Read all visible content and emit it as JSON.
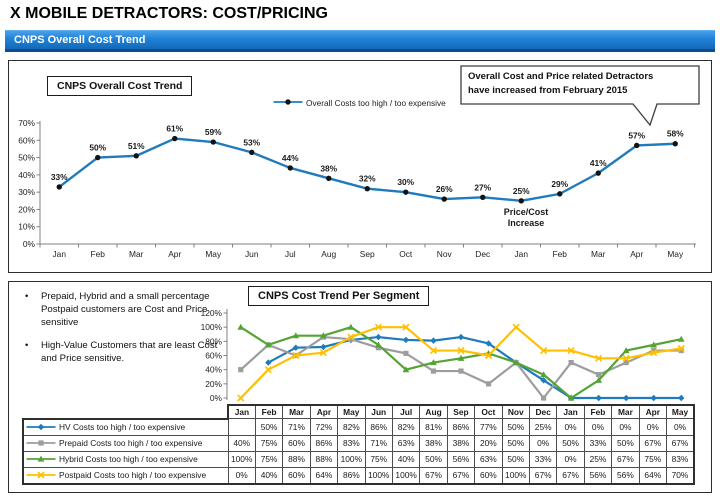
{
  "page_title": "X MOBILE DETRACTORS: COST/PRICING",
  "banner": {
    "label": "CNPS Overall Cost Trend"
  },
  "panel1": {
    "chart_title": "CNPS Overall Cost Trend",
    "legend_label": "Overall Costs too high / too expensive",
    "callout_text": "Overall Cost and Price related Detractors\nhave increased from February 2015",
    "annotation_text": "Price/Cost\nIncrease"
  },
  "panel2": {
    "chart_title": "CNPS Cost Trend Per Segment",
    "bullets": [
      "Prepaid, Hybrid and a small percentage Postpaid customers are Cost and Price sensitive",
      "High-Value Customers that are least Cost and Price sensitive."
    ]
  },
  "colors": {
    "banner_blue": "#1E82D8",
    "line_blue": "#1F7BBD",
    "line_gray": "#9D9D9D",
    "line_green": "#55A336",
    "line_yellow": "#FFC000",
    "marker_black": "#131313"
  },
  "chart_data": [
    {
      "type": "line",
      "title": "CNPS Overall Cost Trend",
      "categories": [
        "Jan",
        "Feb",
        "Mar",
        "Apr",
        "May",
        "Jun",
        "Jul",
        "Aug",
        "Sep",
        "Oct",
        "Nov",
        "Dec",
        "Jan",
        "Feb",
        "Mar",
        "Apr",
        "May"
      ],
      "series": [
        {
          "name": "Overall Costs too high / too expensive",
          "color": "#1F7BBD",
          "marker": "circle",
          "values": [
            33,
            50,
            51,
            61,
            59,
            53,
            44,
            38,
            32,
            30,
            26,
            27,
            25,
            29,
            41,
            57,
            58
          ]
        }
      ],
      "ylim": [
        0,
        70
      ],
      "yticks": [
        0,
        10,
        20,
        30,
        40,
        50,
        60,
        70
      ],
      "data_labels": true,
      "grid": false,
      "legend_position": "top",
      "annotations": [
        "Price/Cost Increase",
        "Overall Cost and Price related Detractors have increased from February 2015"
      ]
    },
    {
      "type": "line",
      "title": "CNPS Cost Trend Per Segment",
      "categories": [
        "Jan",
        "Feb",
        "Mar",
        "Apr",
        "May",
        "Jun",
        "Jul",
        "Aug",
        "Sep",
        "Oct",
        "Nov",
        "Dec",
        "Jan",
        "Feb",
        "Mar",
        "Apr",
        "May"
      ],
      "series": [
        {
          "name": "HV Costs too high / too expensive",
          "color": "#1F7BBD",
          "marker": "diamond",
          "values": [
            null,
            50,
            71,
            72,
            82,
            86,
            82,
            81,
            86,
            77,
            50,
            25,
            0,
            0,
            0,
            0,
            0
          ]
        },
        {
          "name": "Prepaid  Costs too high / too expensive",
          "color": "#9D9D9D",
          "marker": "square",
          "values": [
            40,
            75,
            60,
            86,
            83,
            71,
            63,
            38,
            38,
            20,
            50,
            0,
            50,
            33,
            50,
            67,
            67
          ]
        },
        {
          "name": "Hybrid Costs too high / too expensive",
          "color": "#55A336",
          "marker": "triangle",
          "values": [
            100,
            75,
            88,
            88,
            100,
            75,
            40,
            50,
            56,
            63,
            50,
            33,
            0,
            25,
            67,
            75,
            83
          ]
        },
        {
          "name": "Postpaid Costs too high / too expensive",
          "color": "#FFC000",
          "marker": "x",
          "values": [
            0,
            40,
            60,
            64,
            86,
            100,
            100,
            67,
            67,
            60,
            100,
            67,
            67,
            56,
            56,
            64,
            70
          ]
        }
      ],
      "ylim": [
        0,
        120
      ],
      "yticks": [
        0,
        20,
        40,
        60,
        80,
        100,
        120
      ],
      "data_labels": false,
      "grid": false,
      "show_data_table": true
    }
  ]
}
